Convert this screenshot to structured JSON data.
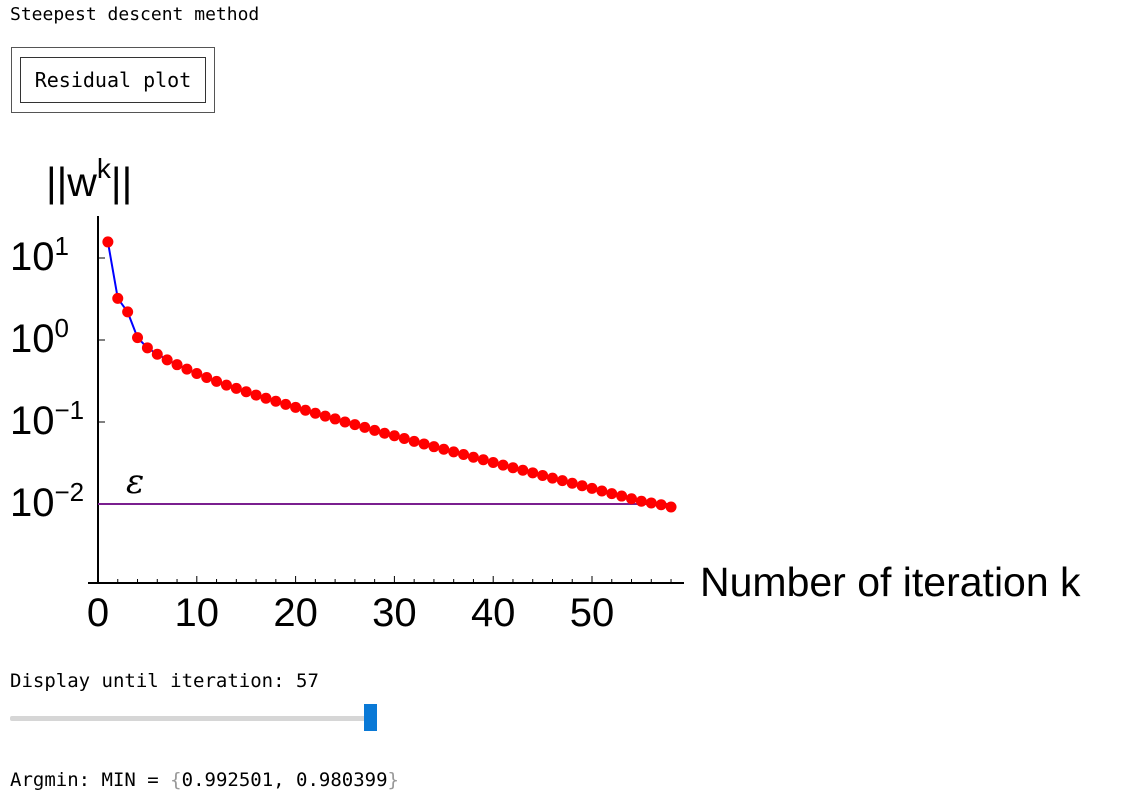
{
  "title": "Steepest descent method",
  "residual_button_label": "Residual plot",
  "slider": {
    "label_prefix": "Display until iteration:",
    "value": "57",
    "min": 0,
    "max": 57,
    "fraction": 1.0
  },
  "argmin": {
    "prefix": "Argmin: MIN =",
    "open": "{",
    "values": "0.992501, 0.980399",
    "close": "}"
  },
  "chart_data": {
    "type": "scatter",
    "ylabel_base": "||w",
    "ylabel_sup": "k",
    "ylabel_end": "||",
    "xlabel": "Number of iteration k",
    "epsilon_label": "ε",
    "epsilon_value": 0.01,
    "x_ticks": [
      "0",
      "10",
      "20",
      "30",
      "40",
      "50"
    ],
    "y_ticks": [
      {
        "base": "10",
        "exp": "1",
        "value": 10
      },
      {
        "base": "10",
        "exp": "0",
        "value": 1
      },
      {
        "base": "10",
        "exp": "−1",
        "value": 0.1
      },
      {
        "base": "10",
        "exp": "−2",
        "value": 0.01
      }
    ],
    "xlim": [
      0,
      59
    ],
    "ylim": [
      0.0012,
      30
    ],
    "y_scale": "log",
    "colors": {
      "points": "#ff0000",
      "line": "#0000ff",
      "epsilon_line": "#7a1f8f"
    },
    "series": [
      {
        "x": [
          1,
          2,
          3,
          4,
          5,
          6,
          7,
          8,
          9,
          10,
          11,
          12,
          13,
          14,
          15,
          16,
          17,
          18,
          19,
          20,
          21,
          22,
          23,
          24,
          25,
          26,
          27,
          28,
          29,
          30,
          31,
          32,
          33,
          34,
          35,
          36,
          37,
          38,
          39,
          40,
          41,
          42,
          43,
          44,
          45,
          46,
          47,
          48,
          49,
          50,
          51,
          52,
          53,
          54,
          55,
          56,
          57,
          58
        ],
        "y": [
          15.7,
          3.22,
          2.2,
          1.07,
          0.803,
          0.671,
          0.573,
          0.5,
          0.441,
          0.39,
          0.349,
          0.313,
          0.282,
          0.257,
          0.234,
          0.213,
          0.195,
          0.179,
          0.164,
          0.151,
          0.139,
          0.128,
          0.118,
          0.109,
          0.1,
          0.093,
          0.086,
          0.079,
          0.073,
          0.068,
          0.063,
          0.058,
          0.054,
          0.05,
          0.0465,
          0.0432,
          0.0401,
          0.0372,
          0.0346,
          0.0321,
          0.0298,
          0.0277,
          0.0258,
          0.024,
          0.0223,
          0.0207,
          0.0193,
          0.0179,
          0.0167,
          0.0155,
          0.0144,
          0.0134,
          0.0125,
          0.0116,
          0.0108,
          0.0103,
          0.0098,
          0.0092
        ]
      }
    ]
  }
}
